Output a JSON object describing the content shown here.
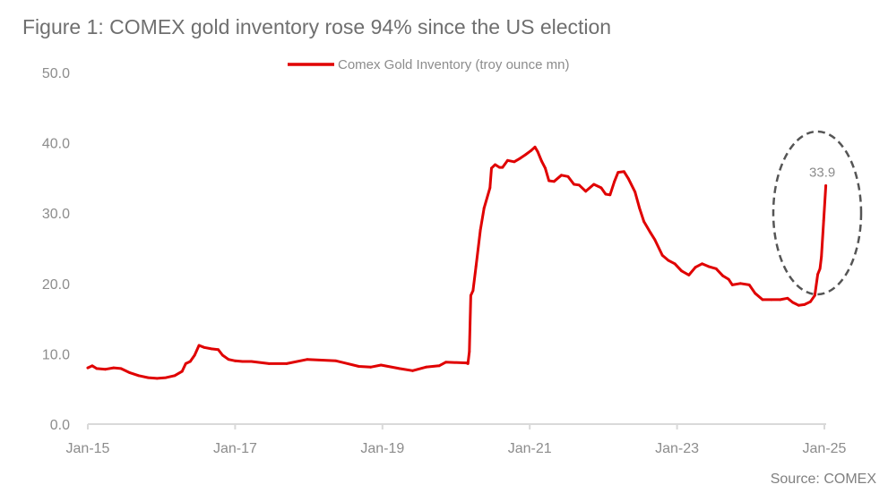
{
  "chart_data": {
    "type": "line",
    "title": "Figure 1: COMEX gold inventory rose 94% since the US election",
    "xlabel": "",
    "ylabel": "",
    "source": "Source: COMEX",
    "ylim": [
      0,
      50
    ],
    "yticks": [
      0,
      10,
      20,
      30,
      40,
      50
    ],
    "ytick_labels": [
      "0.0",
      "10.0",
      "20.0",
      "30.0",
      "40.0",
      "50.0"
    ],
    "xlim": [
      2015.0,
      2025.0
    ],
    "xticks": [
      2015,
      2017,
      2019,
      2021,
      2023,
      2025
    ],
    "xtick_labels": [
      "Jan-15",
      "Jan-17",
      "Jan-19",
      "Jan-21",
      "Jan-23",
      "Jan-25"
    ],
    "grid": false,
    "legend": {
      "position": "top-center",
      "entries": [
        "Comex Gold Inventory (troy ounce mn)"
      ]
    },
    "annotations": [
      {
        "type": "dashed-ellipse",
        "around": "latest surge",
        "color": "#555555"
      },
      {
        "type": "data-label",
        "text": "33.9",
        "x": 2025.02,
        "y": 33.9
      }
    ],
    "series": [
      {
        "name": "Comex Gold Inventory (troy ounce mn)",
        "color": "#e00000",
        "x": [
          2015.0,
          2015.06,
          2015.12,
          2015.24,
          2015.35,
          2015.45,
          2015.57,
          2015.69,
          2015.82,
          2015.94,
          2016.06,
          2016.18,
          2016.28,
          2016.33,
          2016.39,
          2016.45,
          2016.51,
          2016.58,
          2016.68,
          2016.77,
          2016.83,
          2016.91,
          2017.0,
          2017.1,
          2017.22,
          2017.46,
          2017.7,
          2017.98,
          2018.37,
          2018.68,
          2018.84,
          2018.98,
          2019.23,
          2019.41,
          2019.59,
          2019.77,
          2019.86,
          2020.14,
          2020.16,
          2020.18,
          2020.2,
          2020.23,
          2020.27,
          2020.33,
          2020.38,
          2020.46,
          2020.48,
          2020.53,
          2020.59,
          2020.63,
          2020.7,
          2020.79,
          2020.87,
          2020.94,
          2021.02,
          2021.07,
          2021.11,
          2021.16,
          2021.21,
          2021.26,
          2021.33,
          2021.43,
          2021.52,
          2021.6,
          2021.67,
          2021.76,
          2021.87,
          2021.97,
          2022.03,
          2022.09,
          2022.15,
          2022.2,
          2022.28,
          2022.34,
          2022.43,
          2022.49,
          2022.55,
          2022.64,
          2022.7,
          2022.8,
          2022.88,
          2022.97,
          2023.06,
          2023.16,
          2023.25,
          2023.34,
          2023.43,
          2023.53,
          2023.62,
          2023.7,
          2023.75,
          2023.86,
          2023.98,
          2024.06,
          2024.16,
          2024.28,
          2024.4,
          2024.5,
          2024.57,
          2024.65,
          2024.73,
          2024.81,
          2024.87,
          2024.91,
          2024.94,
          2024.96,
          2024.99,
          2025.02
        ],
        "values": [
          8.0,
          8.3,
          7.9,
          7.8,
          8.0,
          7.9,
          7.3,
          6.9,
          6.6,
          6.5,
          6.6,
          6.9,
          7.5,
          8.6,
          8.9,
          9.8,
          11.2,
          10.9,
          10.7,
          10.6,
          9.8,
          9.2,
          9.0,
          8.9,
          8.9,
          8.6,
          8.6,
          9.2,
          9.0,
          8.2,
          8.1,
          8.4,
          7.9,
          7.6,
          8.1,
          8.3,
          8.8,
          8.7,
          8.6,
          10.3,
          18.3,
          19.0,
          22.4,
          27.6,
          30.7,
          33.6,
          36.4,
          36.9,
          36.5,
          36.5,
          37.5,
          37.3,
          37.8,
          38.3,
          38.9,
          39.4,
          38.7,
          37.4,
          36.4,
          34.6,
          34.5,
          35.4,
          35.2,
          34.1,
          34.0,
          33.1,
          34.1,
          33.6,
          32.7,
          32.6,
          34.5,
          35.8,
          35.9,
          34.9,
          33.0,
          30.7,
          28.8,
          27.2,
          26.2,
          24.0,
          23.3,
          22.8,
          21.8,
          21.2,
          22.3,
          22.8,
          22.4,
          22.1,
          21.1,
          20.6,
          19.8,
          20.0,
          19.8,
          18.6,
          17.7,
          17.7,
          17.7,
          17.9,
          17.3,
          16.9,
          17.0,
          17.4,
          18.3,
          21.3,
          22.1,
          23.8,
          28.9,
          33.9
        ]
      }
    ]
  }
}
